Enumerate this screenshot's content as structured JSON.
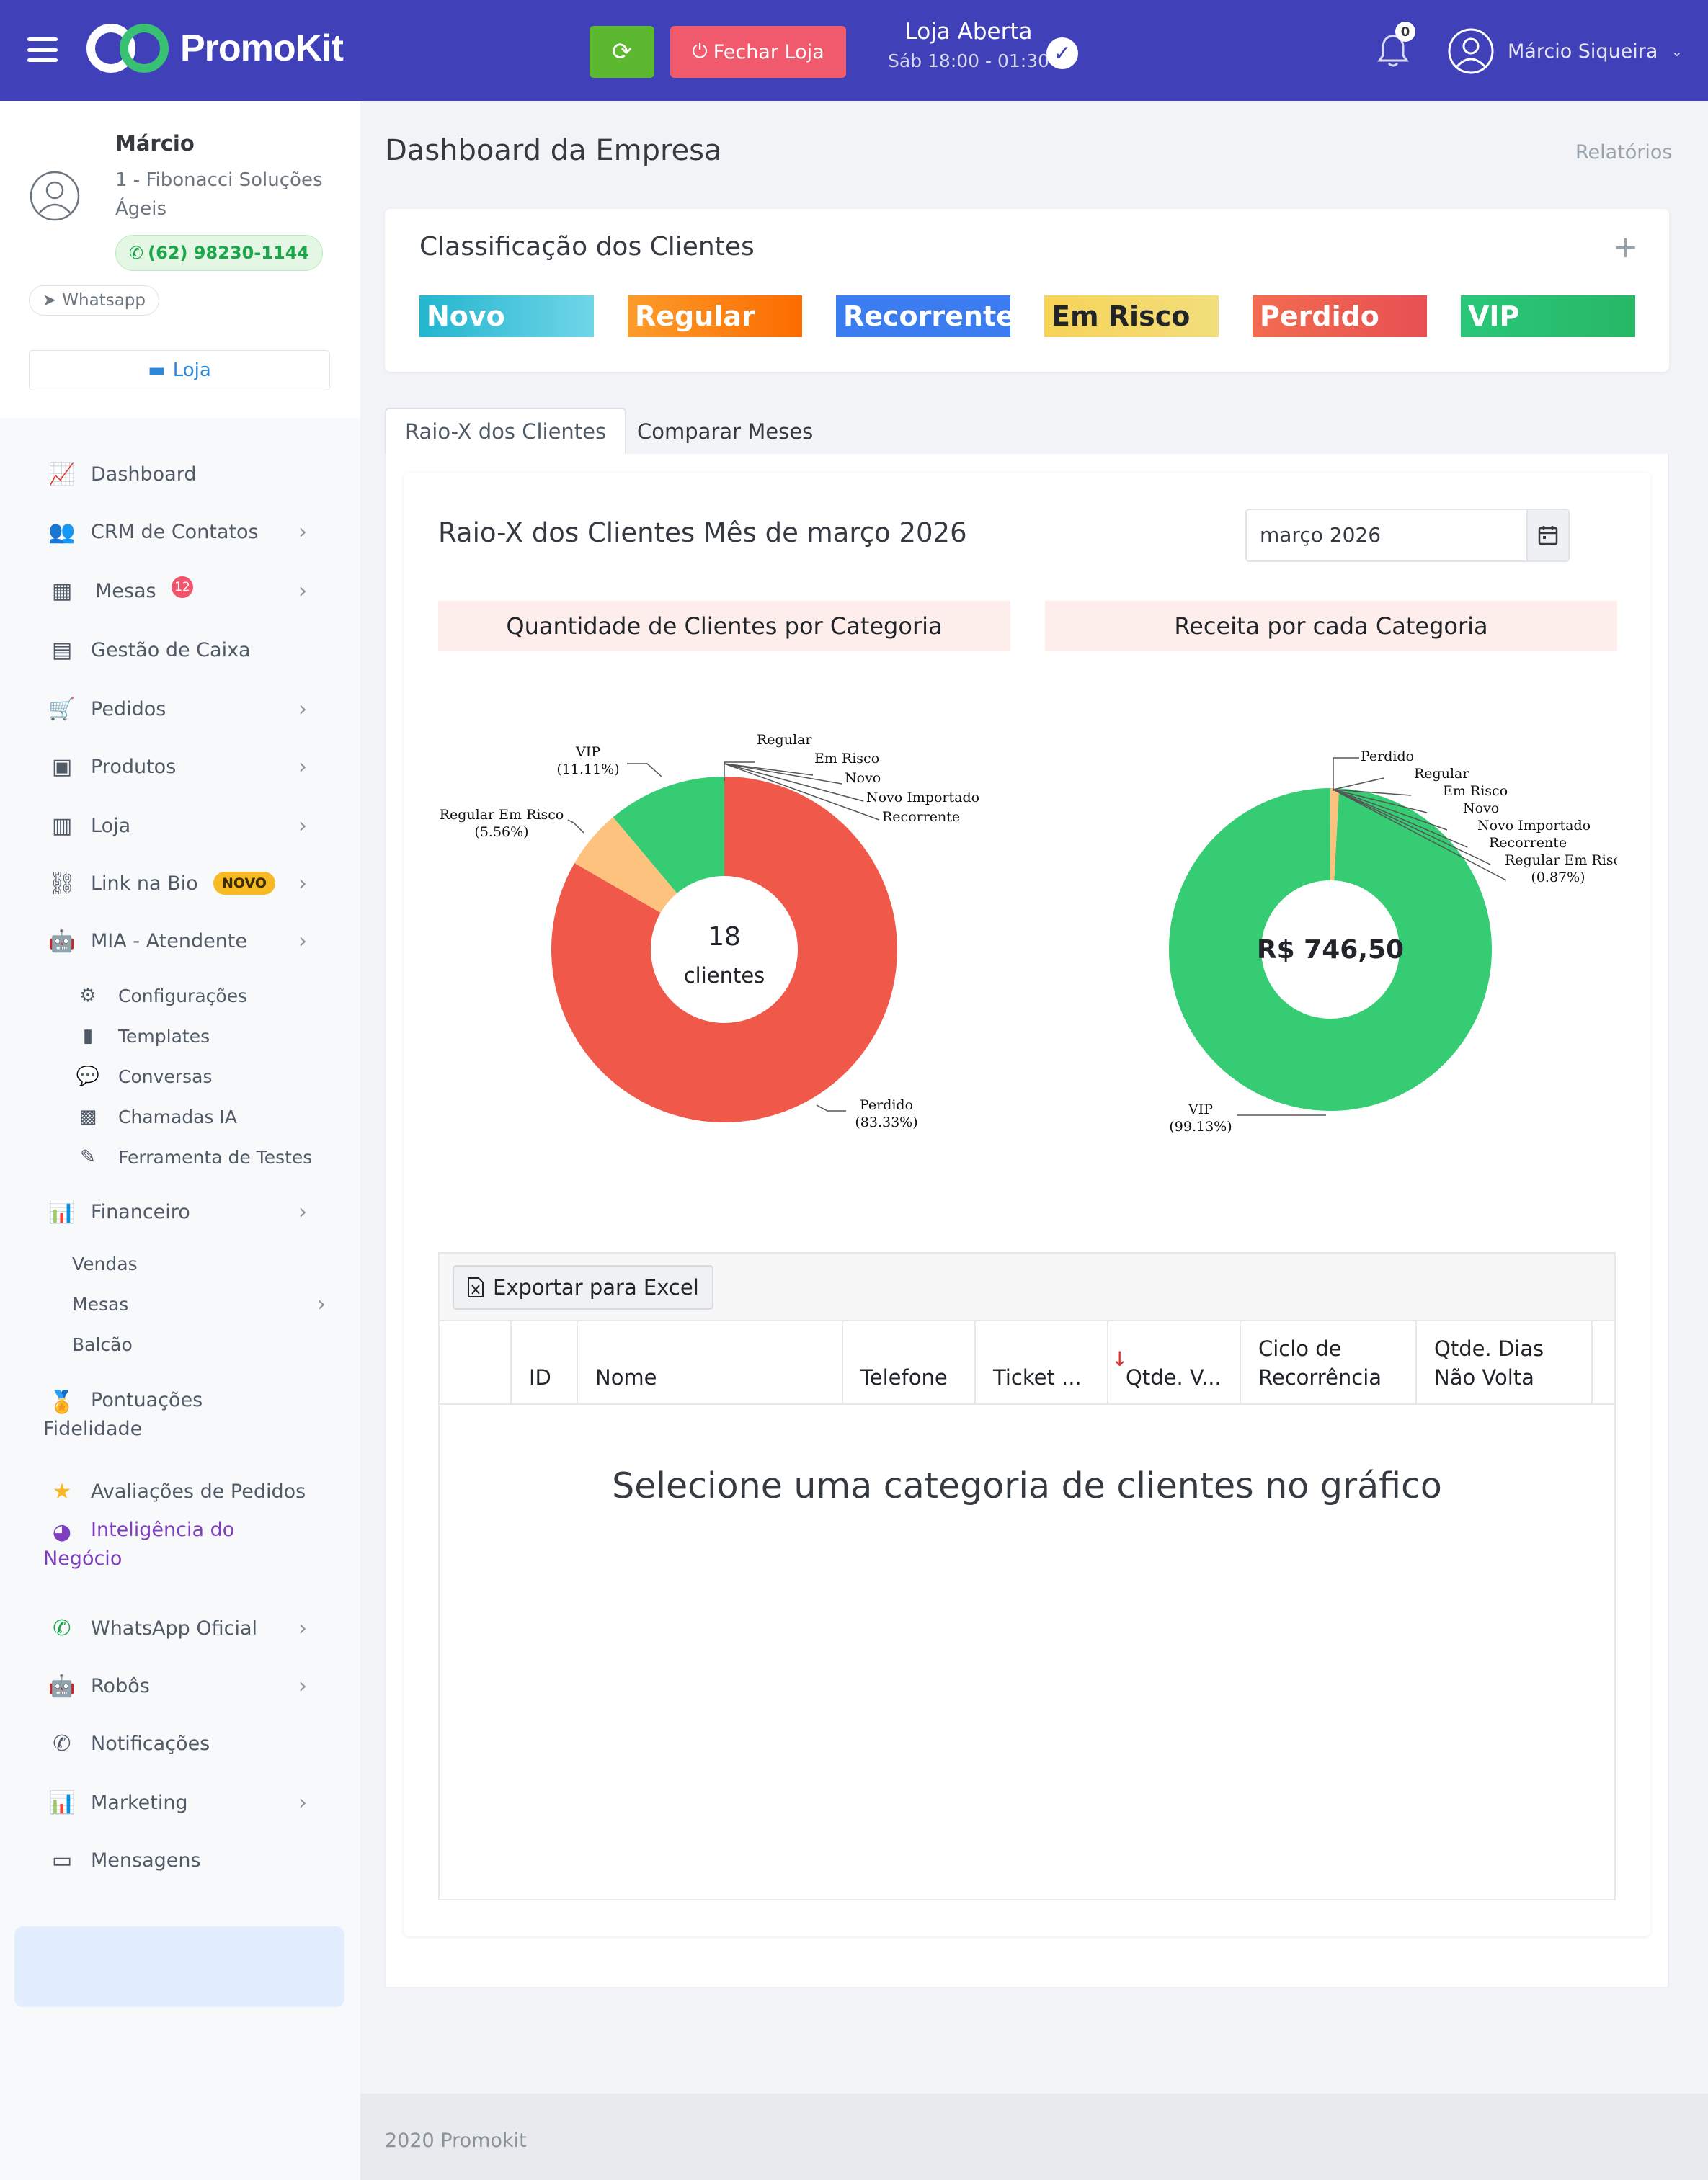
{
  "topbar": {
    "brand": "PromoKit",
    "close_store_label": "Fechar Loja",
    "store_status": "Loja Aberta",
    "store_hours": "Sáb 18:00 - 01:30",
    "notifications_count": "0",
    "user_name": "Márcio Siqueira"
  },
  "profile": {
    "name": "Márcio",
    "company": "1 - Fibonacci Soluções Ágeis",
    "phone": "(62) 98230-1144",
    "whatsapp_label": "Whatsapp",
    "store_label": "Loja"
  },
  "menu": {
    "dashboard": "Dashboard",
    "crm": "CRM de Contatos",
    "mesas": "Mesas",
    "mesas_badge": "12",
    "caixa": "Gestão de Caixa",
    "pedidos": "Pedidos",
    "produtos": "Produtos",
    "loja": "Loja",
    "linkbio": "Link na Bio",
    "linkbio_badge": "NOVO",
    "mia": "MIA - Atendente",
    "mia_config": "Configurações",
    "mia_templates": "Templates",
    "mia_conversas": "Conversas",
    "mia_chamadas": "Chamadas IA",
    "mia_testes": "Ferramenta de Testes",
    "financeiro": "Financeiro",
    "fin_vendas": "Vendas",
    "fin_mesas": "Mesas",
    "fin_balcao": "Balcão",
    "pontuacoes_1": "Pontuações",
    "pontuacoes_2": "Fidelidade",
    "avaliacoes": "Avaliações de Pedidos",
    "inteligencia_1": "Inteligência do",
    "inteligencia_2": "Negócio",
    "whatsapp_oficial": "WhatsApp Oficial",
    "robos": "Robôs",
    "notificacoes": "Notificações",
    "marketing": "Marketing",
    "mensagens": "Mensagens"
  },
  "main": {
    "page_title": "Dashboard da Empresa",
    "reports_link": "Relatórios",
    "classification_title": "Classificação dos Clientes",
    "categories": [
      {
        "label": "Novo",
        "color_from": "#23b5cf",
        "color_to": "#6fd6e8"
      },
      {
        "label": "Regular",
        "color_from": "#fb9c2a",
        "color_to": "#fd6b00"
      },
      {
        "label": "Recorrente",
        "color_from": "#3b7df0",
        "color_to": "#3b7df0"
      },
      {
        "label": "Em Risco",
        "color_from": "#f7d358",
        "color_to": "#f2de7c"
      },
      {
        "label": "Perdido",
        "color_from": "#f26c4f",
        "color_to": "#e84f53"
      },
      {
        "label": "VIP",
        "color_from": "#2ac77a",
        "color_to": "#27b766"
      }
    ],
    "tabs": [
      "Raio-X dos Clientes",
      "Comparar Meses"
    ],
    "raiox_title": "Raio-X dos Clientes Mês de março 2026",
    "month_value": "março 2026",
    "chart1_title": "Quantidade de Clientes por Categoria",
    "chart2_title": "Receita por cada Categoria",
    "chart1_center_value": "18",
    "chart1_center_label": "clientes",
    "chart2_center_value": "R$ 746,50",
    "export_label": "Exportar para Excel",
    "columns": [
      "",
      "ID",
      "Nome",
      "Telefone",
      "Ticket ...",
      "Qtde. V...",
      "Ciclo de Recorrência",
      "Qtde. Dias Não Volta"
    ],
    "empty_message": "Selecione uma categoria de clientes no gráfico"
  },
  "chart_data": [
    {
      "type": "pie",
      "title": "Quantidade de Clientes por Categoria",
      "slices": [
        {
          "label": "Perdido",
          "percent_label": "(83.33%)",
          "value": 83.33,
          "color": "#f0584a"
        },
        {
          "label": "Regular Em Risco",
          "percent_label": "(5.56%)",
          "value": 5.56,
          "color": "#fdc27e"
        },
        {
          "label": "VIP",
          "percent_label": "(11.11%)",
          "value": 11.11,
          "color": "#35cc73"
        },
        {
          "label": "Regular",
          "value": 0
        },
        {
          "label": "Em Risco",
          "value": 0
        },
        {
          "label": "Novo",
          "value": 0
        },
        {
          "label": "Novo Importado",
          "value": 0
        },
        {
          "label": "Recorrente",
          "value": 0
        }
      ]
    },
    {
      "type": "pie",
      "title": "Receita por cada Categoria",
      "slices": [
        {
          "label": "VIP",
          "percent_label": "(99.13%)",
          "value": 99.13,
          "color": "#35cc73"
        },
        {
          "label": "Regular Em Risco",
          "percent_label": "(0.87%)",
          "value": 0.87,
          "color": "#fdc27e"
        },
        {
          "label": "Perdido",
          "value": 0
        },
        {
          "label": "Regular",
          "value": 0
        },
        {
          "label": "Em Risco",
          "value": 0
        },
        {
          "label": "Novo",
          "value": 0
        },
        {
          "label": "Novo Importado",
          "value": 0
        },
        {
          "label": "Recorrente",
          "value": 0
        }
      ]
    }
  ],
  "footer": "2020 Promokit"
}
